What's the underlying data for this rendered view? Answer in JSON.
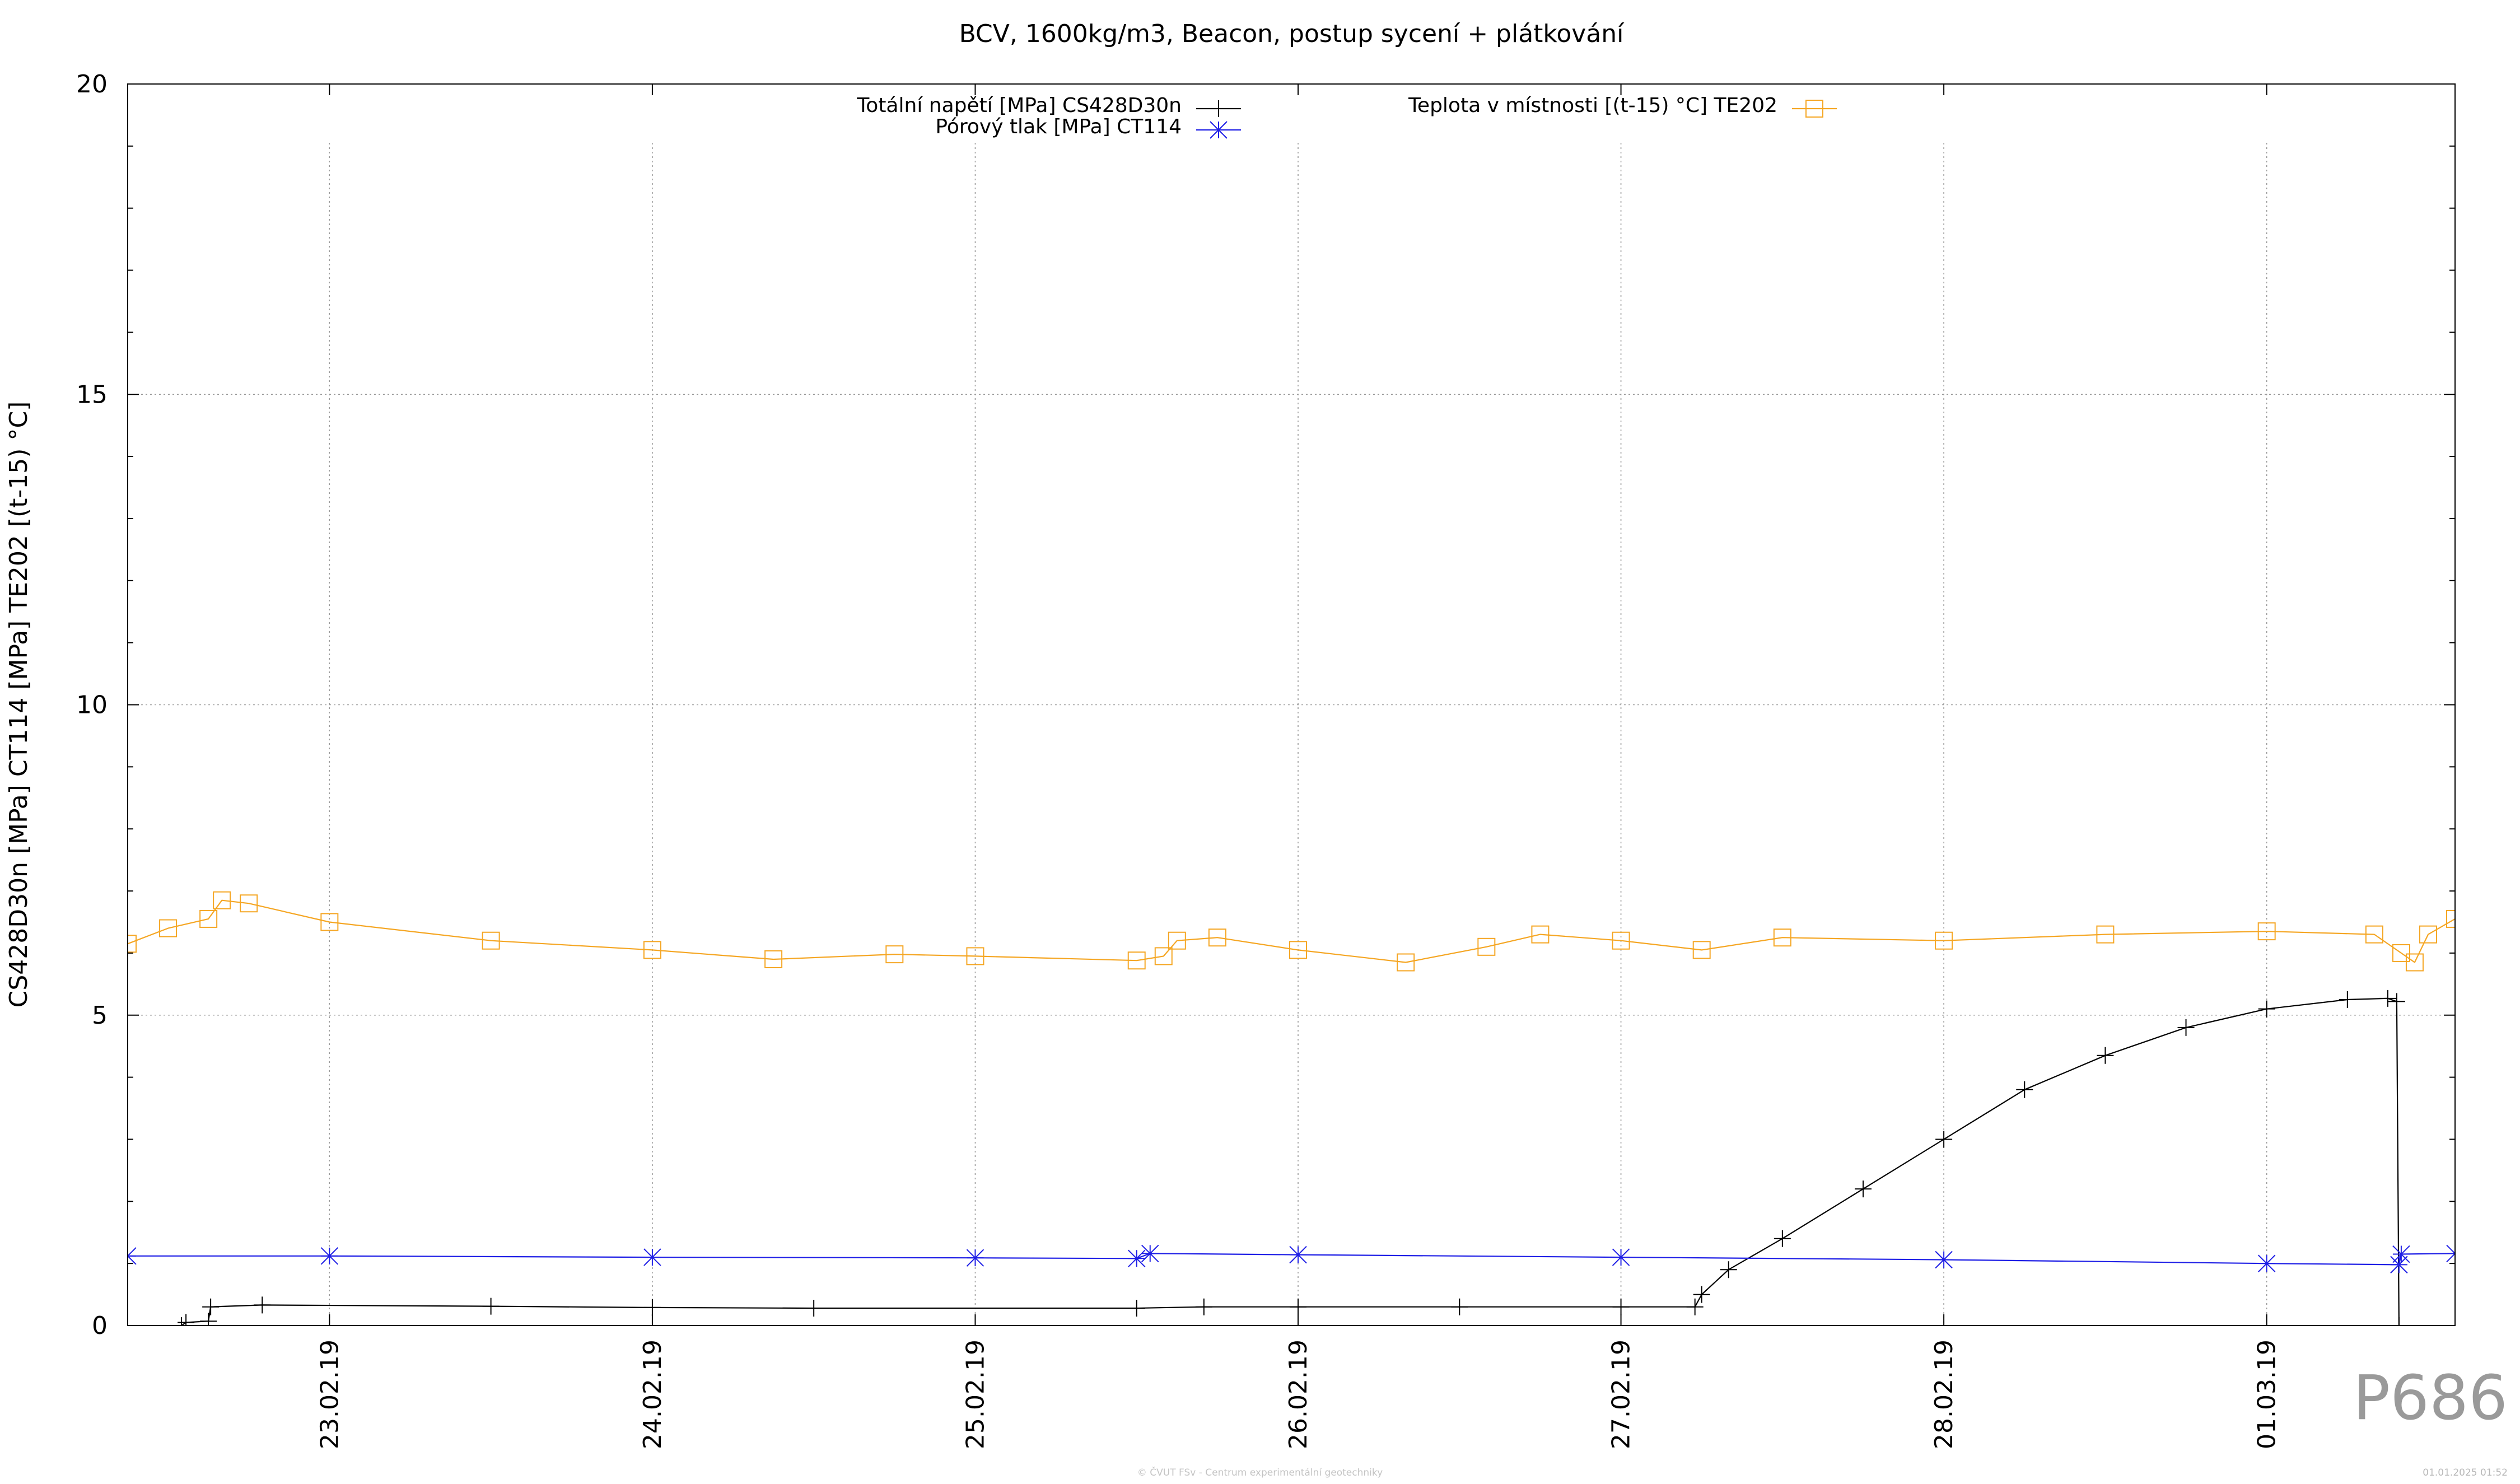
{
  "chart_data": {
    "type": "line",
    "title": "BCV, 1600kg/m3, Beacon, postup sycení + plátkování",
    "ylabel": "CS428D30n [MPa] CT114 [MPa] TE202 [(t-15) °C]",
    "xlabel": "",
    "ylim": [
      0,
      20
    ],
    "yticks": [
      0,
      5,
      10,
      15,
      20
    ],
    "xlim": [
      "22.02.19 09:00",
      "01.03.19 14:00"
    ],
    "xticks": [
      "23.02.19",
      "24.02.19",
      "25.02.19",
      "26.02.19",
      "27.02.19",
      "28.02.19",
      "01.03.19"
    ],
    "grid": true,
    "legend_position": "top",
    "series": [
      {
        "name": "Totální napětí [MPa] CS428D30n",
        "color": "#000000",
        "marker": "plus",
        "points": [
          [
            "22.02.19 13:00",
            0.0
          ],
          [
            "22.02.19 13:20",
            0.05
          ],
          [
            "22.02.19 15:00",
            0.07
          ],
          [
            "22.02.19 15:10",
            0.3
          ],
          [
            "22.02.19 19:00",
            0.33
          ],
          [
            "23.02.19 12:00",
            0.31
          ],
          [
            "24.02.19 00:00",
            0.29
          ],
          [
            "24.02.19 12:00",
            0.28
          ],
          [
            "25.02.19 12:00",
            0.28
          ],
          [
            "25.02.19 17:00",
            0.3
          ],
          [
            "26.02.19 00:00",
            0.3
          ],
          [
            "26.02.19 12:00",
            0.3
          ],
          [
            "27.02.19 00:00",
            0.3
          ],
          [
            "27.02.19 05:30",
            0.3
          ],
          [
            "27.02.19 06:00",
            0.5
          ],
          [
            "27.02.19 08:00",
            0.9
          ],
          [
            "27.02.19 12:00",
            1.4
          ],
          [
            "27.02.19 18:00",
            2.2
          ],
          [
            "28.02.19 00:00",
            3.0
          ],
          [
            "28.02.19 06:00",
            3.8
          ],
          [
            "28.02.19 12:00",
            4.35
          ],
          [
            "28.02.19 18:00",
            4.8
          ],
          [
            "01.03.19 00:00",
            5.1
          ],
          [
            "01.03.19 06:00",
            5.25
          ],
          [
            "01.03.19 09:00",
            5.27
          ],
          [
            "01.03.19 09:40",
            5.22
          ],
          [
            "01.03.19 09:50",
            0.0
          ]
        ]
      },
      {
        "name": "Pórový tlak [MPa] CT114",
        "color": "#1f1fe6",
        "marker": "star",
        "points": [
          [
            "22.02.19 09:00",
            1.12
          ],
          [
            "23.02.19 00:00",
            1.12
          ],
          [
            "24.02.19 00:00",
            1.1
          ],
          [
            "25.02.19 00:00",
            1.09
          ],
          [
            "25.02.19 12:00",
            1.08
          ],
          [
            "25.02.19 13:00",
            1.16
          ],
          [
            "26.02.19 00:00",
            1.14
          ],
          [
            "27.02.19 00:00",
            1.1
          ],
          [
            "28.02.19 00:00",
            1.06
          ],
          [
            "01.03.19 00:00",
            1.0
          ],
          [
            "01.03.19 09:50",
            0.98
          ],
          [
            "01.03.19 10:00",
            1.15
          ],
          [
            "01.03.19 14:00",
            1.16
          ]
        ]
      },
      {
        "name": "Teplota v místnosti [(t-15) °C] TE202",
        "color": "#f5a623",
        "marker": "square",
        "points": [
          [
            "22.02.19 09:00",
            6.15
          ],
          [
            "22.02.19 12:00",
            6.4
          ],
          [
            "22.02.19 15:00",
            6.55
          ],
          [
            "22.02.19 16:00",
            6.85
          ],
          [
            "22.02.19 18:00",
            6.8
          ],
          [
            "23.02.19 00:00",
            6.5
          ],
          [
            "23.02.19 12:00",
            6.2
          ],
          [
            "24.02.19 00:00",
            6.05
          ],
          [
            "24.02.19 09:00",
            5.9
          ],
          [
            "24.02.19 18:00",
            5.98
          ],
          [
            "25.02.19 00:00",
            5.95
          ],
          [
            "25.02.19 12:00",
            5.88
          ],
          [
            "25.02.19 14:00",
            5.95
          ],
          [
            "25.02.19 15:00",
            6.2
          ],
          [
            "25.02.19 18:00",
            6.25
          ],
          [
            "26.02.19 00:00",
            6.05
          ],
          [
            "26.02.19 08:00",
            5.85
          ],
          [
            "26.02.19 14:00",
            6.1
          ],
          [
            "26.02.19 18:00",
            6.3
          ],
          [
            "27.02.19 00:00",
            6.2
          ],
          [
            "27.02.19 06:00",
            6.05
          ],
          [
            "27.02.19 12:00",
            6.25
          ],
          [
            "28.02.19 00:00",
            6.2
          ],
          [
            "28.02.19 12:00",
            6.3
          ],
          [
            "01.03.19 00:00",
            6.35
          ],
          [
            "01.03.19 08:00",
            6.3
          ],
          [
            "01.03.19 10:00",
            6.0
          ],
          [
            "01.03.19 11:00",
            5.85
          ],
          [
            "01.03.19 12:00",
            6.3
          ],
          [
            "01.03.19 14:00",
            6.55
          ]
        ]
      }
    ]
  },
  "watermark": "P686",
  "footer": {
    "credit": "© ČVUT FSv - Centrum experimentální geotechniky",
    "timestamp": "01.01.2025 01:52"
  }
}
